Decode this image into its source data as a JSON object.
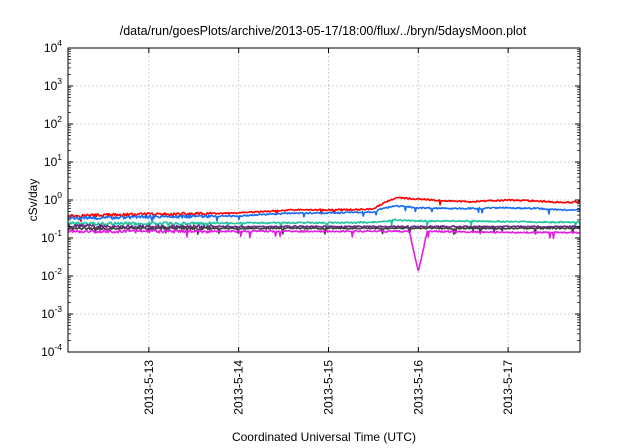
{
  "chart_data": {
    "type": "line",
    "title": "/data/run/goesPlots/archive/2013-05-17/18:00/flux/../bryn/5daysMoon.plot",
    "xlabel": "Coordinated Universal Time (UTC)",
    "ylabel": "cSv/day",
    "yscale": "log",
    "ylim": [
      0.0001,
      10000
    ],
    "xlim": [
      12.1,
      17.8
    ],
    "x_unit": "day of May 2013",
    "y_ticks": [
      {
        "base": "10",
        "exp": "-4",
        "value": 0.0001
      },
      {
        "base": "10",
        "exp": "-3",
        "value": 0.001
      },
      {
        "base": "10",
        "exp": "-2",
        "value": 0.01
      },
      {
        "base": "10",
        "exp": "-1",
        "value": 0.1
      },
      {
        "base": "10",
        "exp": "0",
        "value": 1
      },
      {
        "base": "10",
        "exp": "1",
        "value": 10
      },
      {
        "base": "10",
        "exp": "2",
        "value": 100
      },
      {
        "base": "10",
        "exp": "3",
        "value": 1000
      },
      {
        "base": "10",
        "exp": "4",
        "value": 10000
      }
    ],
    "x_ticks": [
      {
        "label": "2013-5-13",
        "value": 13
      },
      {
        "label": "2013-5-14",
        "value": 14
      },
      {
        "label": "2013-5-15",
        "value": 15
      },
      {
        "label": "2013-5-16",
        "value": 16
      },
      {
        "label": "2013-5-17",
        "value": 17
      }
    ],
    "grid": true,
    "series": [
      {
        "color": "#ff0000",
        "x": [
          12.1,
          12.5,
          13.0,
          13.5,
          14.0,
          14.3,
          14.6,
          15.0,
          15.3,
          15.5,
          15.6,
          15.75,
          16.0,
          16.3,
          16.6,
          17.0,
          17.3,
          17.6,
          17.8
        ],
        "y": [
          0.38,
          0.4,
          0.42,
          0.43,
          0.45,
          0.5,
          0.55,
          0.55,
          0.56,
          0.58,
          0.8,
          1.15,
          1.05,
          0.95,
          0.9,
          1.0,
          0.95,
          0.85,
          0.9
        ]
      },
      {
        "color": "#1a6cf0",
        "x": [
          12.1,
          12.5,
          13.0,
          13.5,
          14.0,
          14.3,
          14.6,
          15.0,
          15.3,
          15.5,
          15.6,
          15.75,
          16.0,
          16.3,
          16.6,
          17.0,
          17.3,
          17.6,
          17.8
        ],
        "y": [
          0.33,
          0.34,
          0.36,
          0.37,
          0.38,
          0.42,
          0.45,
          0.46,
          0.47,
          0.48,
          0.6,
          0.7,
          0.62,
          0.6,
          0.6,
          0.62,
          0.6,
          0.55,
          0.56
        ]
      },
      {
        "color": "#22c4a0",
        "x": [
          12.1,
          13.0,
          14.0,
          15.0,
          15.5,
          15.75,
          16.0,
          16.5,
          17.0,
          17.5,
          17.8
        ],
        "y": [
          0.24,
          0.24,
          0.25,
          0.25,
          0.26,
          0.3,
          0.28,
          0.28,
          0.27,
          0.26,
          0.26
        ]
      },
      {
        "color": "#6a2a8a",
        "x": [
          12.1,
          13.0,
          14.0,
          15.0,
          16.0,
          17.0,
          17.8
        ],
        "y": [
          0.21,
          0.2,
          0.2,
          0.2,
          0.2,
          0.2,
          0.2
        ]
      },
      {
        "color": "#404040",
        "x": [
          12.1,
          13.0,
          14.0,
          15.0,
          16.0,
          17.0,
          17.8
        ],
        "y": [
          0.18,
          0.18,
          0.18,
          0.18,
          0.18,
          0.18,
          0.18
        ]
      },
      {
        "color": "#e020e0",
        "x": [
          12.1,
          13.0,
          14.0,
          15.0,
          15.9,
          16.0,
          16.1,
          17.0,
          17.8
        ],
        "y": [
          0.15,
          0.15,
          0.15,
          0.15,
          0.15,
          0.013,
          0.15,
          0.14,
          0.14
        ]
      }
    ]
  }
}
